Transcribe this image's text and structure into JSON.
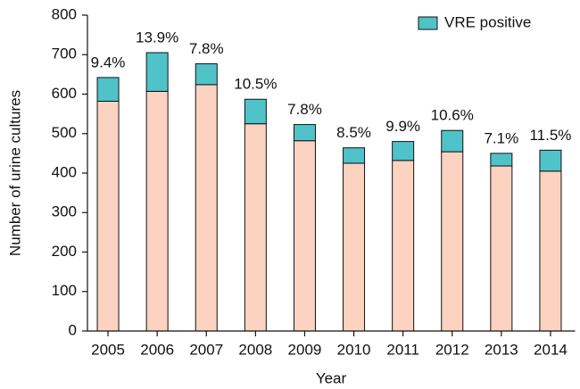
{
  "chart_data": {
    "type": "stacked_bar",
    "x_label": "Year",
    "y_label": "Number of urine cultures",
    "categories": [
      "2005",
      "2006",
      "2007",
      "2008",
      "2009",
      "2010",
      "2011",
      "2012",
      "2013",
      "2014"
    ],
    "series": [
      {
        "color": "#fcd3c1",
        "values": [
          582,
          607,
          624,
          525,
          482,
          425,
          432,
          454,
          418,
          405
        ]
      },
      {
        "name": "VRE positive",
        "color": "#4fc3c9",
        "values": [
          60,
          98,
          53,
          62,
          41,
          39,
          48,
          54,
          32,
          53
        ]
      }
    ],
    "annotations": [
      "9.4%",
      "13.9%",
      "7.8%",
      "10.5%",
      "7.8%",
      "8.5%",
      "9.9%",
      "10.6%",
      "7.1%",
      "11.5%"
    ],
    "ylim": [
      0,
      800
    ],
    "yticks": [
      0,
      100,
      200,
      300,
      400,
      500,
      600,
      700,
      800
    ],
    "legend": "top-right"
  }
}
